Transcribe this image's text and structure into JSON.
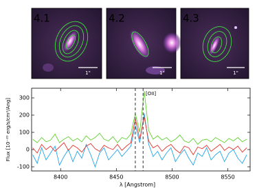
{
  "panels": [
    {
      "label": "4.1",
      "color": "#3a9ad9",
      "scale": "1\""
    },
    {
      "label": "4.2",
      "color": "#7ed321",
      "scale": "1\""
    },
    {
      "label": "4.3",
      "color": "#e8322c",
      "scale": "1\""
    }
  ],
  "chart_data": {
    "type": "line",
    "xlabel": "λ [Angstrom]",
    "ylabel": "Flux [10⁻²⁰ erg/s/cm²/Ang]",
    "annotation": "[OII]",
    "vlines": [
      8467,
      8474
    ],
    "x": [
      8375,
      8379,
      8383,
      8387,
      8391,
      8395,
      8399,
      8403,
      8407,
      8411,
      8415,
      8419,
      8423,
      8427,
      8431,
      8435,
      8439,
      8443,
      8447,
      8451,
      8455,
      8459,
      8463,
      8467,
      8471,
      8475,
      8479,
      8483,
      8487,
      8491,
      8495,
      8499,
      8503,
      8507,
      8511,
      8515,
      8519,
      8523,
      8527,
      8531,
      8535,
      8539,
      8543,
      8547,
      8551,
      8555,
      8559,
      8563,
      8567
    ],
    "series": [
      {
        "color": "#1fa5e8",
        "values": [
          -30,
          -80,
          10,
          -60,
          -20,
          20,
          -90,
          -40,
          0,
          -70,
          -10,
          -50,
          30,
          -30,
          -100,
          -20,
          10,
          -60,
          -30,
          0,
          -40,
          -10,
          20,
          140,
          40,
          210,
          30,
          -40,
          -10,
          -60,
          -20,
          10,
          -70,
          -30,
          0,
          -50,
          -90,
          -20,
          -40,
          10,
          -60,
          -30,
          -10,
          -70,
          -20,
          0,
          -50,
          -80,
          -30
        ]
      },
      {
        "color": "#e5332a",
        "values": [
          10,
          -20,
          30,
          0,
          20,
          -10,
          15,
          40,
          -5,
          25,
          10,
          -15,
          20,
          35,
          5,
          -10,
          25,
          10,
          0,
          30,
          -5,
          20,
          40,
          180,
          60,
          190,
          50,
          10,
          25,
          -10,
          15,
          30,
          0,
          -20,
          20,
          10,
          -30,
          15,
          5,
          25,
          -10,
          10,
          30,
          -5,
          15,
          0,
          20,
          -15,
          10
        ]
      },
      {
        "color": "#5fd12f",
        "values": [
          60,
          40,
          70,
          45,
          55,
          90,
          40,
          60,
          75,
          50,
          65,
          45,
          80,
          55,
          70,
          95,
          60,
          50,
          75,
          40,
          70,
          60,
          90,
          210,
          100,
          340,
          110,
          60,
          80,
          55,
          70,
          45,
          60,
          85,
          50,
          40,
          65,
          30,
          55,
          60,
          45,
          70,
          55,
          40,
          65,
          50,
          70,
          45,
          60
        ]
      }
    ],
    "xlim": [
      8374,
      8570
    ],
    "ylim": [
      -124,
      356
    ],
    "xticks": [
      8400,
      8450,
      8500,
      8550
    ],
    "yticks": [
      -100,
      0,
      100,
      200,
      300
    ]
  }
}
